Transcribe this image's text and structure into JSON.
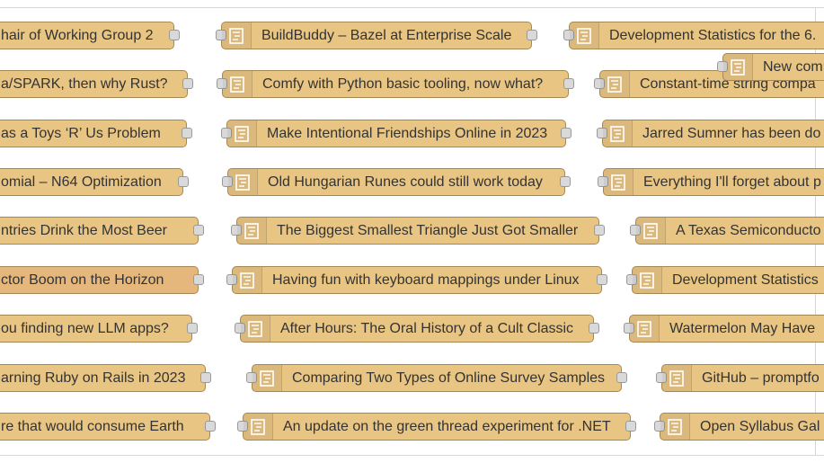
{
  "colors": {
    "node_fill": "#e9c584",
    "node_selected_fill": "#e5b77c",
    "node_border": "#a88852",
    "port_fill": "#d9d9d9",
    "text": "#333333"
  },
  "icon": "function-node-icon",
  "nodes": {
    "col1": [
      "hair of Working Group 2",
      "a/SPARK, then why Rust?",
      "as a Toys ‘R’ Us Problem",
      "omial – N64 Optimization",
      "ntries Drink the Most Beer",
      "ctor Boom on the Horizon",
      "ou finding new LLM apps?",
      "arning Ruby on Rails in 2023",
      "re that would consume Earth"
    ],
    "col2": [
      "BuildBuddy – Bazel at Enterprise Scale",
      "Comfy with Python basic tooling, now what?",
      "Make Intentional Friendships Online in 2023",
      "Old Hungarian Runes could still work today",
      "The Biggest Smallest Triangle Just Got Smaller",
      "Having fun with keyboard mappings under Linux",
      "After Hours: The Oral History of a Cult Classic",
      "Comparing Two Types of Online Survey Samples",
      "An update on the green thread experiment for .NET"
    ],
    "col3": [
      "Development Statistics for the 6.",
      "Constant-time string compa",
      "Jarred Sumner has been do",
      "Everything I'll forget about p",
      "A Texas Semiconducto",
      "Development Statistics",
      "Watermelon May Have",
      "GitHub – promptfo",
      "Open Syllabus Gal"
    ],
    "overlay": "New com"
  }
}
